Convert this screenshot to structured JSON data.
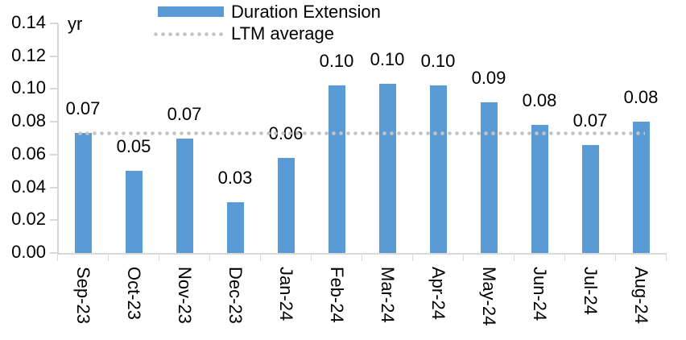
{
  "chart_data": {
    "type": "bar",
    "unit_label": "yr",
    "categories": [
      "Sep-23",
      "Oct-23",
      "Nov-23",
      "Dec-23",
      "Jan-24",
      "Feb-24",
      "Mar-24",
      "Apr-24",
      "May-24",
      "Jun-24",
      "Jul-24",
      "Aug-24"
    ],
    "series": [
      {
        "name": "Duration Extension",
        "type": "bar",
        "values": [
          0.073,
          0.05,
          0.07,
          0.031,
          0.058,
          0.102,
          0.103,
          0.102,
          0.092,
          0.078,
          0.066,
          0.08
        ],
        "value_labels": [
          "0.07",
          "0.05",
          "0.07",
          "0.03",
          "0.06",
          "0.10",
          "0.10",
          "0.10",
          "0.09",
          "0.08",
          "0.07",
          "0.08"
        ],
        "color": "#5B9BD5"
      },
      {
        "name": "LTM average",
        "type": "dotted-line",
        "value": 0.073,
        "color": "#C4C4C4"
      }
    ],
    "ylim": [
      0,
      0.14
    ],
    "ytick_labels": [
      "0.00",
      "0.02",
      "0.04",
      "0.06",
      "0.08",
      "0.10",
      "0.12",
      "0.14"
    ],
    "grid": false,
    "legend_position": "top",
    "axis_color": "#D9D9D9",
    "text_color": "#000000"
  }
}
